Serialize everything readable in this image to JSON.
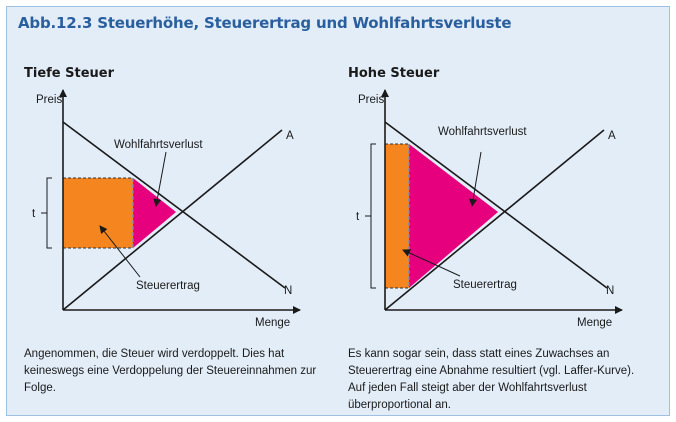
{
  "figure": {
    "title": "Abb.12.3  Steuerhöhe, Steuerertrag und Wohlfahrtsverluste"
  },
  "panels": [
    {
      "title": "Tiefe Steuer",
      "y_axis_label": "Preis",
      "x_axis_label": "Menge",
      "supply_label": "A",
      "demand_label": "N",
      "tax_label": "t",
      "welfare_loss_label": "Wohlfahrtsverlust",
      "tax_revenue_label": "Steuerertrag",
      "caption": "Angenommen, die Steuer wird verdoppelt. Dies hat keineswegs eine Verdoppelung der Steuereinnahmen zur Folge."
    },
    {
      "title": "Hohe Steuer",
      "y_axis_label": "Preis",
      "x_axis_label": "Menge",
      "supply_label": "A",
      "demand_label": "N",
      "tax_label": "t",
      "welfare_loss_label": "Wohlfahrtsverlust",
      "tax_revenue_label": "Steuerertrag",
      "caption": "Es kann sogar sein, dass statt eines Zuwachses an Steuerertrag eine Abnahme resultiert (vgl. Laffer-Kurve). Auf jeden Fall steigt aber der Wohlfahrtsverlust überproportional an."
    }
  ],
  "colors": {
    "title": "#2a5f9e",
    "tax_revenue": "#f5861f",
    "welfare_loss": "#e6007e",
    "frame_bg": "#e3edf8"
  }
}
